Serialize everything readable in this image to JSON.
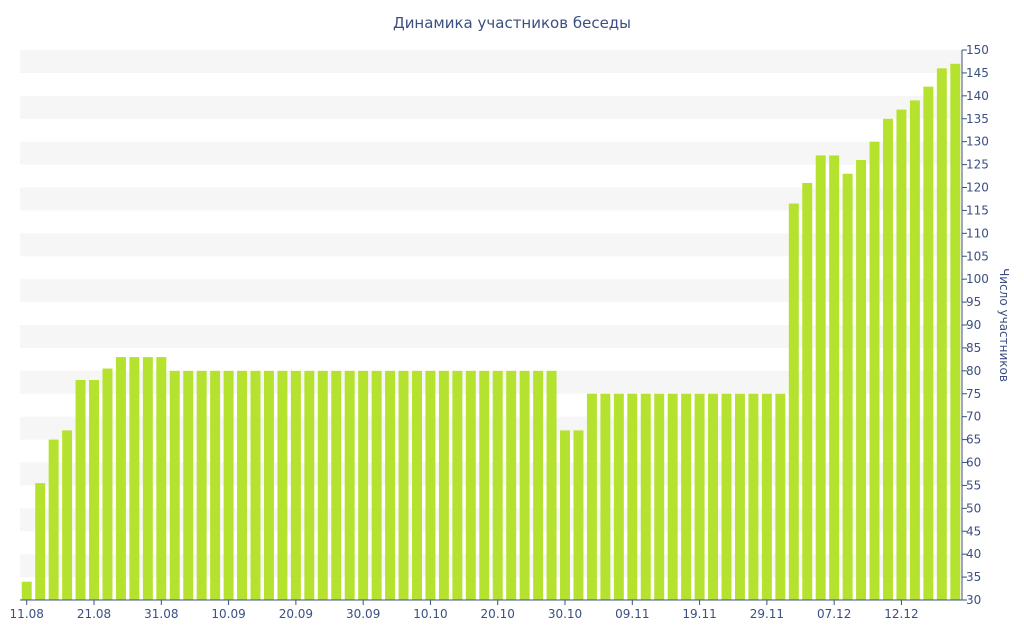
{
  "chart_data": {
    "type": "bar",
    "title": "Динамика участников беседы",
    "xlabel": "",
    "ylabel": "Число участников",
    "ylim": [
      30,
      150
    ],
    "y_ticks": [
      30,
      35,
      40,
      45,
      50,
      55,
      60,
      65,
      70,
      75,
      80,
      85,
      90,
      95,
      100,
      105,
      110,
      115,
      120,
      125,
      130,
      135,
      140,
      145,
      150
    ],
    "x_tick_labels": [
      {
        "label": "11.08",
        "index": 0
      },
      {
        "label": "21.08",
        "index": 5
      },
      {
        "label": "31.08",
        "index": 10
      },
      {
        "label": "10.09",
        "index": 15
      },
      {
        "label": "20.09",
        "index": 20
      },
      {
        "label": "30.09",
        "index": 25
      },
      {
        "label": "10.10",
        "index": 30
      },
      {
        "label": "20.10",
        "index": 35
      },
      {
        "label": "30.10",
        "index": 40
      },
      {
        "label": "09.11",
        "index": 45
      },
      {
        "label": "19.11",
        "index": 50
      },
      {
        "label": "29.11",
        "index": 55
      },
      {
        "label": "07.12",
        "index": 60
      },
      {
        "label": "12.12",
        "index": 65
      }
    ],
    "grid": "horizontal bands",
    "bar_color": "#b5e22f",
    "band_color": "#f6f6f6",
    "values": [
      34,
      55.5,
      65,
      67,
      78,
      78,
      80.5,
      83,
      83,
      83,
      83,
      80,
      80,
      80,
      80,
      80,
      80,
      80,
      80,
      80,
      80,
      80,
      80,
      80,
      80,
      80,
      80,
      80,
      80,
      80,
      80,
      80,
      80,
      80,
      80,
      80,
      80,
      80,
      80,
      80,
      67,
      67,
      75,
      75,
      75,
      75,
      75,
      75,
      75,
      75,
      75,
      75,
      75,
      75,
      75,
      75,
      75,
      116.5,
      121,
      127,
      127,
      123,
      126,
      130,
      135,
      137,
      139,
      142,
      146,
      147
    ]
  }
}
